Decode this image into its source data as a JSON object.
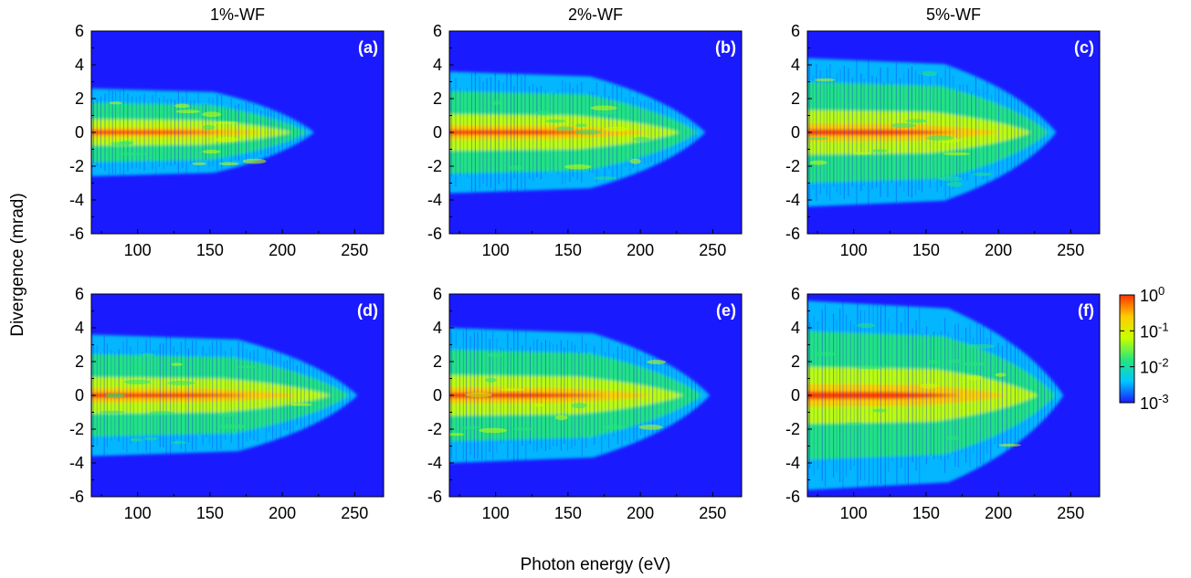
{
  "chart_data": {
    "type": "heatmap",
    "xlabel": "Photon energy (eV)",
    "ylabel": "Divergence (mrad)",
    "xlim": [
      68,
      270
    ],
    "ylim": [
      -6,
      6
    ],
    "x_ticks": [
      100,
      150,
      200,
      250
    ],
    "y_ticks": [
      -6,
      -4,
      -2,
      0,
      2,
      4,
      6
    ],
    "column_titles": [
      "1%-WF",
      "2%-WF",
      "5%-WF"
    ],
    "colorbar": {
      "scale": "log",
      "range": [
        0.001,
        1
      ],
      "ticks": [
        {
          "base": "10",
          "exp": "0"
        },
        {
          "base": "10",
          "exp": "-1"
        },
        {
          "base": "10",
          "exp": "-2"
        },
        {
          "base": "10",
          "exp": "-3"
        }
      ],
      "colors": [
        "#1a1aff",
        "#00c8ff",
        "#26e67a",
        "#c8ff00",
        "#ffcc00",
        "#ff3300"
      ]
    },
    "panels": [
      {
        "label": "(a)",
        "row": 0,
        "col": 0,
        "cutoff_ev": 222,
        "halfwidth_mrad": 2.6
      },
      {
        "label": "(b)",
        "row": 0,
        "col": 1,
        "cutoff_ev": 245,
        "halfwidth_mrad": 3.6
      },
      {
        "label": "(c)",
        "row": 0,
        "col": 2,
        "cutoff_ev": 240,
        "halfwidth_mrad": 4.4
      },
      {
        "label": "(d)",
        "row": 1,
        "col": 0,
        "cutoff_ev": 252,
        "halfwidth_mrad": 3.6
      },
      {
        "label": "(e)",
        "row": 1,
        "col": 1,
        "cutoff_ev": 248,
        "halfwidth_mrad": 4.0
      },
      {
        "label": "(f)",
        "row": 1,
        "col": 2,
        "cutoff_ev": 245,
        "halfwidth_mrad": 5.6
      }
    ]
  }
}
